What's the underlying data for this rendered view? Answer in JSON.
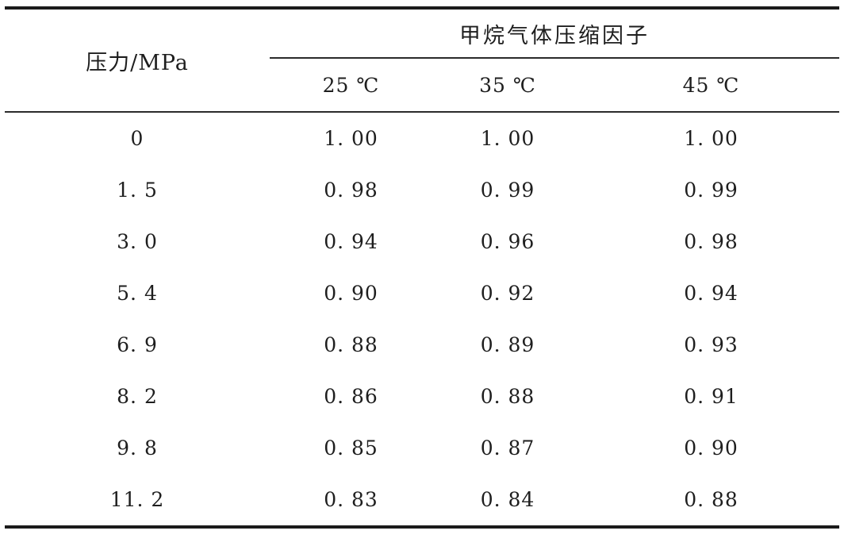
{
  "table": {
    "pressure_header": "压力/MPa",
    "span_header": "甲烷气体压缩因子",
    "temp_headers": {
      "t25": "25 ℃",
      "t35": "35 ℃",
      "t45": "45 ℃"
    },
    "rows": [
      {
        "pressure": "0",
        "v25": "1. 00",
        "v35": "1. 00",
        "v45": "1. 00"
      },
      {
        "pressure": "1. 5",
        "v25": "0. 98",
        "v35": "0. 99",
        "v45": "0. 99"
      },
      {
        "pressure": "3. 0",
        "v25": "0. 94",
        "v35": "0. 96",
        "v45": "0. 98"
      },
      {
        "pressure": "5. 4",
        "v25": "0. 90",
        "v35": "0. 92",
        "v45": "0. 94"
      },
      {
        "pressure": "6. 9",
        "v25": "0. 88",
        "v35": "0. 89",
        "v45": "0. 93"
      },
      {
        "pressure": "8. 2",
        "v25": "0. 86",
        "v35": "0. 88",
        "v45": "0. 91"
      },
      {
        "pressure": "9. 8",
        "v25": "0. 85",
        "v35": "0. 87",
        "v45": "0. 90"
      },
      {
        "pressure": "11. 2",
        "v25": "0. 83",
        "v35": "0. 84",
        "v45": "0. 88"
      }
    ]
  },
  "colors": {
    "text": "#1e1e1e",
    "rule_thick": "#1b1b1b",
    "rule_thin": "#2b2b2b",
    "background": "#ffffff"
  }
}
